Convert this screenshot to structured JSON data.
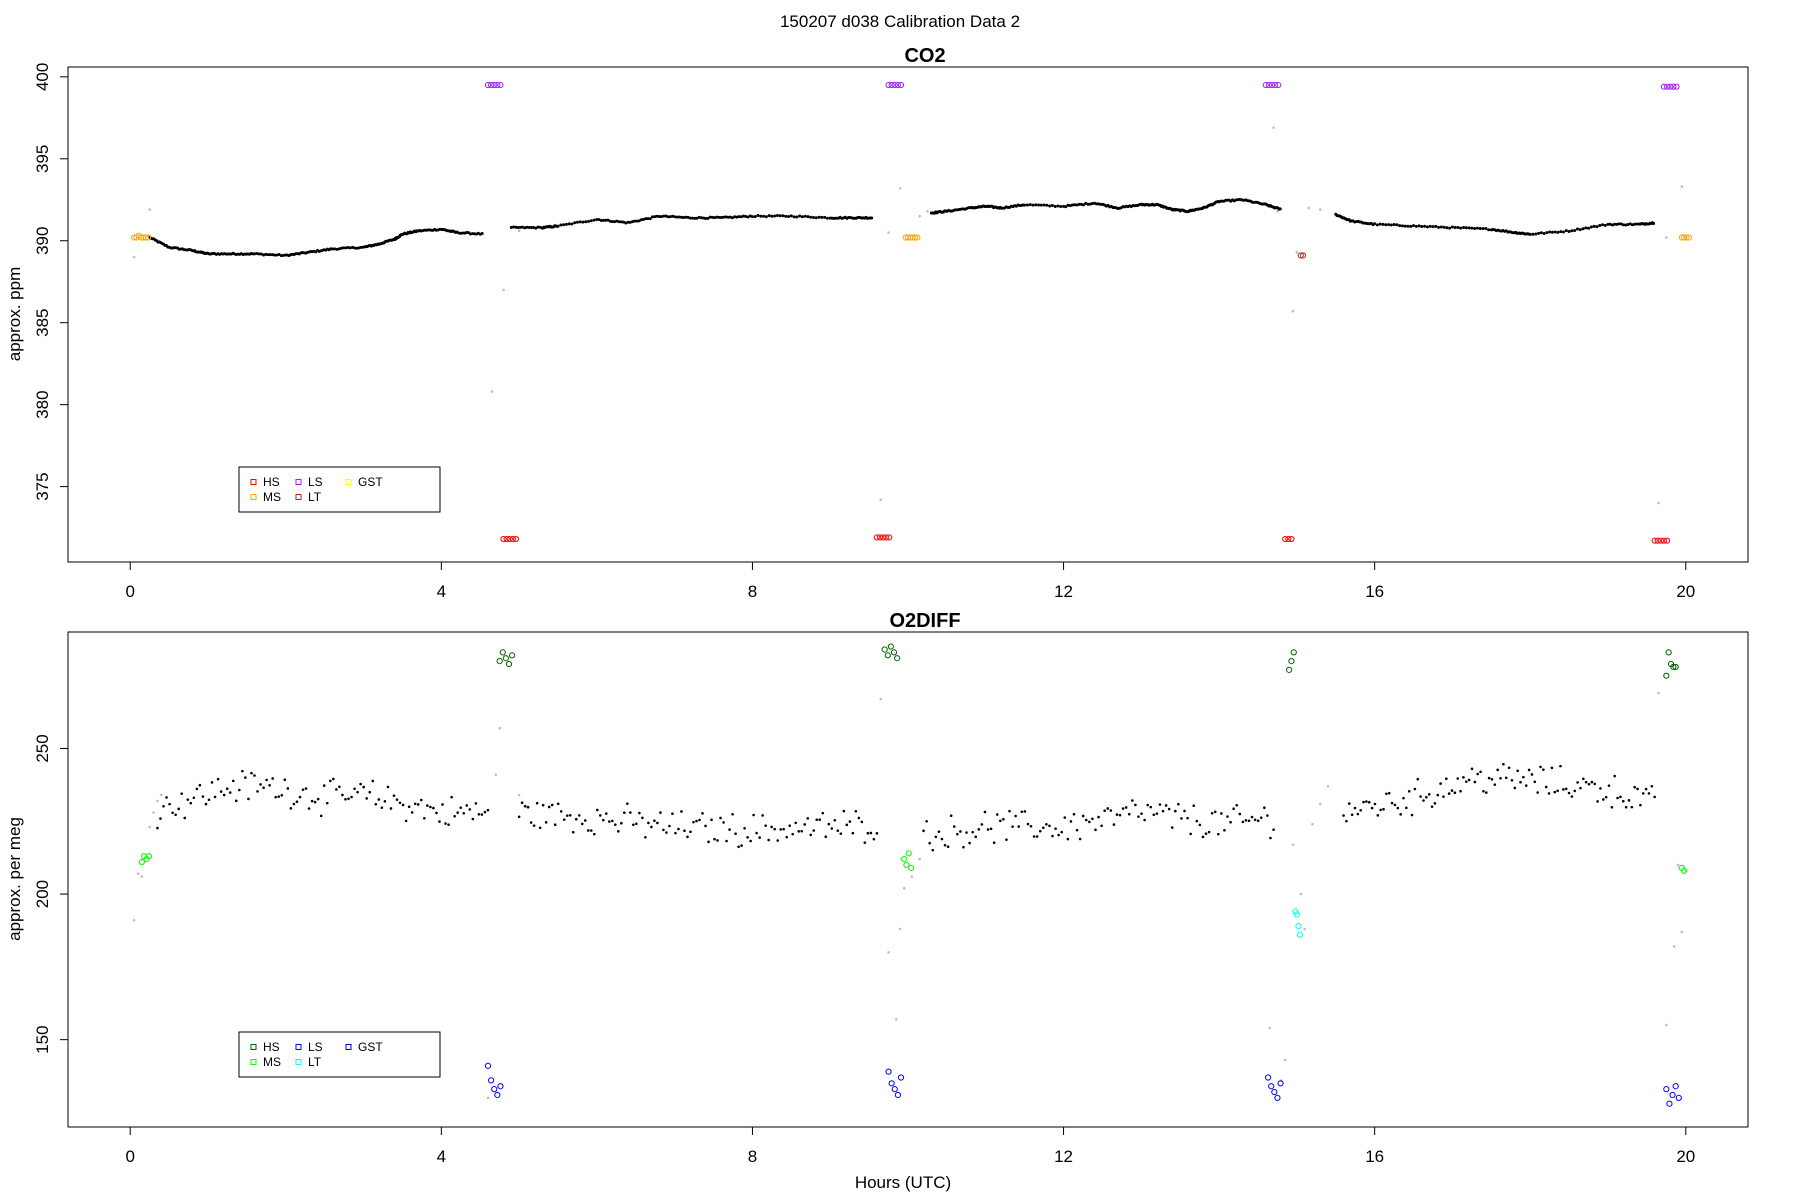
{
  "figure": {
    "title": "150207   d038   Calibration Data 2",
    "xlabel": "Hours (UTC)"
  },
  "chart_data": [
    {
      "type": "scatter",
      "title": "CO2",
      "xlabel": "",
      "ylabel": "approx. ppm",
      "xlim": [
        -0.8,
        20.8
      ],
      "ylim": [
        370.4,
        400.6
      ],
      "xticks": [
        0,
        4,
        8,
        12,
        16,
        20
      ],
      "yticks": [
        375,
        380,
        385,
        390,
        395,
        400
      ],
      "grid": false,
      "legend_placement": "bottom-left",
      "legend": [
        {
          "label": "HS",
          "color": "#ff0000"
        },
        {
          "label": "MS",
          "color": "#ffa500"
        },
        {
          "label": "LS",
          "color": "#a020f0"
        },
        {
          "label": "LT",
          "color": "#a52a2a"
        },
        {
          "label": "GST",
          "color": "#ffff00"
        }
      ],
      "ambient_curve": {
        "color": "#000000",
        "x": [
          0.25,
          0.5,
          0.8,
          1.0,
          1.3,
          1.6,
          2.0,
          2.3,
          2.6,
          3.0,
          3.2,
          3.4,
          3.5,
          3.7,
          4.0,
          4.2,
          4.55,
          4.9,
          5.3,
          5.5,
          6.0,
          6.4,
          6.8,
          7.2,
          7.6,
          8.0,
          8.5,
          9.0,
          9.3,
          9.55,
          10.3,
          10.5,
          10.8,
          11.0,
          11.2,
          11.5,
          12.0,
          12.4,
          12.7,
          13.0,
          13.2,
          13.4,
          13.6,
          13.8,
          14.0,
          14.3,
          14.6,
          14.8,
          15.5,
          15.7,
          16.0,
          16.5,
          17.0,
          17.5,
          17.8,
          18.0,
          18.5,
          19.0,
          19.4,
          19.6
        ],
        "y": [
          390.2,
          389.6,
          389.4,
          389.2,
          389.2,
          389.2,
          389.1,
          389.3,
          389.5,
          389.6,
          389.8,
          390.1,
          390.4,
          390.6,
          390.7,
          390.5,
          390.4,
          390.8,
          390.8,
          390.9,
          391.3,
          391.1,
          391.5,
          391.4,
          391.4,
          391.5,
          391.5,
          391.4,
          391.4,
          391.4,
          391.7,
          391.8,
          392.0,
          392.1,
          392.0,
          392.2,
          392.1,
          392.3,
          392.0,
          392.2,
          392.2,
          391.9,
          391.8,
          392.0,
          392.4,
          392.5,
          392.2,
          391.9,
          391.6,
          391.2,
          391.0,
          390.9,
          390.8,
          390.7,
          390.5,
          390.4,
          390.6,
          391.0,
          391.0,
          391.1
        ],
        "gaps_before_x": [
          4.9,
          10.3,
          15.5
        ]
      },
      "transition_points": {
        "color": "#bebebe",
        "x": [
          0.05,
          0.25,
          0.35,
          4.65,
          4.8,
          5.0,
          5.1,
          9.65,
          9.75,
          9.9,
          10.0,
          10.15,
          10.25,
          14.7,
          14.75,
          14.95,
          15.0,
          15.15,
          15.3,
          19.65,
          19.75,
          19.95,
          20.0
        ],
        "y": [
          389.0,
          391.9,
          390.0,
          380.8,
          387.0,
          390.6,
          390.8,
          374.2,
          390.5,
          393.2,
          390.1,
          391.5,
          391.8,
          396.9,
          391.8,
          385.7,
          389.3,
          392.0,
          391.9,
          374.0,
          390.2,
          393.3,
          390.2
        ]
      },
      "calibration_points": [
        {
          "label": "MS",
          "color": "#ffa500",
          "x": [
            0.05,
            0.08,
            0.11,
            0.14,
            0.17,
            0.2,
            0.23,
            9.97,
            10.0,
            10.03,
            10.06,
            10.09,
            10.12,
            19.95,
            19.98,
            20.01,
            20.04
          ],
          "y": [
            390.2,
            390.2,
            390.3,
            390.2,
            390.2,
            390.2,
            390.2,
            390.2,
            390.2,
            390.2,
            390.2,
            390.2,
            390.2,
            390.2,
            390.2,
            390.2,
            390.2
          ]
        },
        {
          "label": "LS",
          "color": "#a020f0",
          "x": [
            4.6,
            4.64,
            4.68,
            4.72,
            4.76,
            9.75,
            9.79,
            9.83,
            9.87,
            9.91,
            14.6,
            14.64,
            14.68,
            14.72,
            14.76,
            19.72,
            19.76,
            19.8,
            19.84,
            19.88
          ],
          "y": [
            399.5,
            399.5,
            399.5,
            399.5,
            399.5,
            399.5,
            399.5,
            399.5,
            399.5,
            399.5,
            399.5,
            399.5,
            399.5,
            399.5,
            399.5,
            399.4,
            399.4,
            399.4,
            399.4,
            399.4
          ]
        },
        {
          "label": "HS",
          "color": "#ff0000",
          "x": [
            4.8,
            4.84,
            4.88,
            4.92,
            4.96,
            9.6,
            9.64,
            9.68,
            9.72,
            9.76,
            14.85,
            14.89,
            14.93,
            19.6,
            19.64,
            19.68,
            19.72,
            19.76
          ],
          "y": [
            371.8,
            371.8,
            371.8,
            371.8,
            371.8,
            371.9,
            371.9,
            371.9,
            371.9,
            371.9,
            371.8,
            371.8,
            371.8,
            371.7,
            371.7,
            371.7,
            371.7,
            371.7
          ]
        },
        {
          "label": "LT",
          "color": "#a52a2a",
          "x": [
            15.05,
            15.08
          ],
          "y": [
            389.1,
            389.1
          ]
        }
      ]
    },
    {
      "type": "scatter",
      "title": "O2DIFF",
      "xlabel": "Hours (UTC)",
      "ylabel": "approx. per meg",
      "xlim": [
        -0.8,
        20.8
      ],
      "ylim": [
        120,
        290
      ],
      "xticks": [
        0,
        4,
        8,
        12,
        16,
        20
      ],
      "yticks": [
        150,
        200,
        250
      ],
      "grid": false,
      "legend_placement": "bottom-left",
      "legend": [
        {
          "label": "HS",
          "color": "#006400"
        },
        {
          "label": "MS",
          "color": "#00ff00"
        },
        {
          "label": "LS",
          "color": "#0000ff"
        },
        {
          "label": "LT",
          "color": "#00ffff"
        },
        {
          "label": "GST",
          "color": "#0000cd"
        }
      ],
      "ambient_points": {
        "color": "#000000",
        "segments": [
          {
            "x0": 0.35,
            "x1": 4.6,
            "n": 110,
            "profile_x": [
              0.35,
              0.8,
              1.3,
              1.8,
              2.5,
              3.0,
              3.5,
              4.0,
              4.6
            ],
            "profile_y": [
              229,
              233,
              237,
              237,
              233,
              234,
              231,
              228,
              228
            ]
          },
          {
            "x0": 5.0,
            "x1": 9.6,
            "n": 120,
            "profile_x": [
              5.0,
              6.0,
              7.0,
              8.0,
              9.0,
              9.6
            ],
            "profile_y": [
              228,
              226,
              223,
              222,
              223,
              224
            ]
          },
          {
            "x0": 10.2,
            "x1": 14.7,
            "n": 115,
            "profile_x": [
              10.2,
              11.0,
              12.0,
              13.0,
              14.0,
              14.7
            ],
            "profile_y": [
              220,
              223,
              223,
              228,
              224,
              226
            ]
          },
          {
            "x0": 15.6,
            "x1": 19.6,
            "n": 110,
            "profile_x": [
              15.6,
              16.5,
              17.3,
              18.0,
              19.0,
              19.6
            ],
            "profile_y": [
              228,
              233,
              240,
              239,
              236,
              231
            ]
          }
        ],
        "spread": 4.5
      },
      "transition_points": {
        "color": "#bebebe",
        "x": [
          0.05,
          0.1,
          0.15,
          0.25,
          0.3,
          0.35,
          0.4,
          4.6,
          4.7,
          4.75,
          5.0,
          5.1,
          9.65,
          9.75,
          9.85,
          9.9,
          9.95,
          10.05,
          10.15,
          14.65,
          14.8,
          14.85,
          14.95,
          15.05,
          15.1,
          15.2,
          15.3,
          15.4,
          19.65,
          19.75,
          19.85,
          19.9,
          19.95,
          20.0
        ],
        "y": [
          191,
          207,
          206,
          223,
          228,
          232,
          234,
          130,
          241,
          257,
          234,
          230,
          267,
          180,
          157,
          188,
          202,
          206,
          212,
          154,
          136,
          143,
          217,
          200,
          188,
          224,
          231,
          237,
          269,
          155,
          182,
          210,
          187,
          208
        ],
        "note": ""
      },
      "calibration_points": [
        {
          "label": "MS",
          "color": "#00ff00",
          "x": [
            0.15,
            0.18,
            0.21,
            0.24,
            9.95,
            9.98,
            10.01,
            10.04,
            19.95,
            19.98
          ],
          "y": [
            211,
            213,
            212,
            213,
            212,
            210,
            214,
            209,
            209,
            208
          ]
        },
        {
          "label": "HS",
          "color": "#006400",
          "x": [
            4.75,
            4.79,
            4.83,
            4.87,
            4.91,
            9.7,
            9.74,
            9.78,
            9.82,
            9.86,
            14.9,
            14.93,
            14.96,
            19.75,
            19.78,
            19.81,
            19.84,
            19.87
          ],
          "y": [
            280,
            283,
            281,
            279,
            282,
            284,
            282,
            285,
            283,
            281,
            277,
            280,
            283,
            275,
            283,
            279,
            278,
            278
          ]
        },
        {
          "label": "LS",
          "color": "#0000ff",
          "x": [
            4.6,
            4.64,
            4.68,
            4.72,
            4.76,
            9.75,
            9.79,
            9.83,
            9.87,
            9.91,
            14.63,
            14.67,
            14.71,
            14.75,
            14.79,
            19.75,
            19.79,
            19.83,
            19.87,
            19.91
          ],
          "y": [
            141,
            136,
            133,
            131,
            134,
            139,
            135,
            133,
            131,
            137,
            137,
            134,
            132,
            130,
            135,
            133,
            128,
            131,
            134,
            130
          ]
        },
        {
          "label": "LT",
          "color": "#00ffff",
          "x": [
            14.98,
            15.0,
            15.02,
            15.04
          ],
          "y": [
            194,
            193,
            189,
            186
          ]
        }
      ]
    }
  ]
}
